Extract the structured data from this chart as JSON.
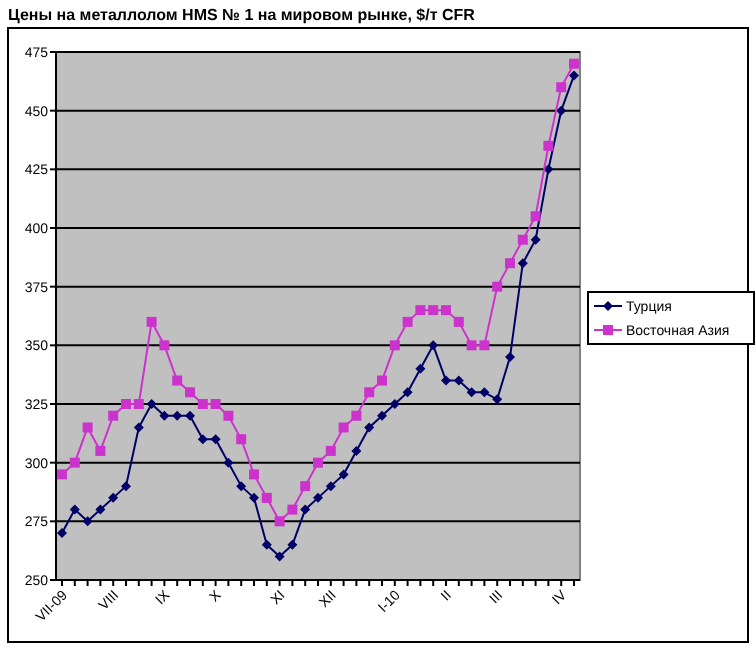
{
  "chart_data": {
    "type": "line",
    "title": "Цены на металлолом HMS № 1 на мировом рынке, $/т CFR",
    "categories": [
      "VII-09",
      null,
      null,
      null,
      "VIII",
      null,
      null,
      null,
      "IX",
      null,
      null,
      null,
      "X",
      null,
      null,
      null,
      null,
      "XI",
      null,
      null,
      null,
      "XII",
      null,
      null,
      null,
      null,
      "I-10",
      null,
      null,
      null,
      "II",
      null,
      null,
      null,
      "III",
      null,
      null,
      null,
      null,
      "IV",
      null
    ],
    "series": [
      {
        "name": "Турция",
        "color": "#000066",
        "marker": "diamond",
        "values": [
          270,
          280,
          275,
          280,
          285,
          290,
          315,
          325,
          320,
          320,
          320,
          310,
          310,
          300,
          290,
          285,
          265,
          260,
          265,
          280,
          285,
          290,
          295,
          305,
          315,
          320,
          325,
          330,
          340,
          350,
          335,
          335,
          330,
          330,
          327,
          345,
          385,
          395,
          425,
          450,
          465
        ]
      },
      {
        "name": "Восточная Азия",
        "color": "#cc33cc",
        "marker": "square",
        "values": [
          295,
          300,
          315,
          305,
          320,
          325,
          325,
          360,
          350,
          335,
          330,
          325,
          325,
          320,
          310,
          295,
          285,
          275,
          280,
          290,
          300,
          305,
          315,
          320,
          330,
          335,
          350,
          360,
          365,
          365,
          365,
          360,
          350,
          350,
          375,
          385,
          395,
          405,
          435,
          460,
          470
        ]
      }
    ],
    "ylim": [
      250,
      475
    ],
    "yticks": [
      250,
      275,
      300,
      325,
      350,
      375,
      400,
      425,
      450,
      475
    ],
    "grid": "y",
    "legend": "right"
  }
}
